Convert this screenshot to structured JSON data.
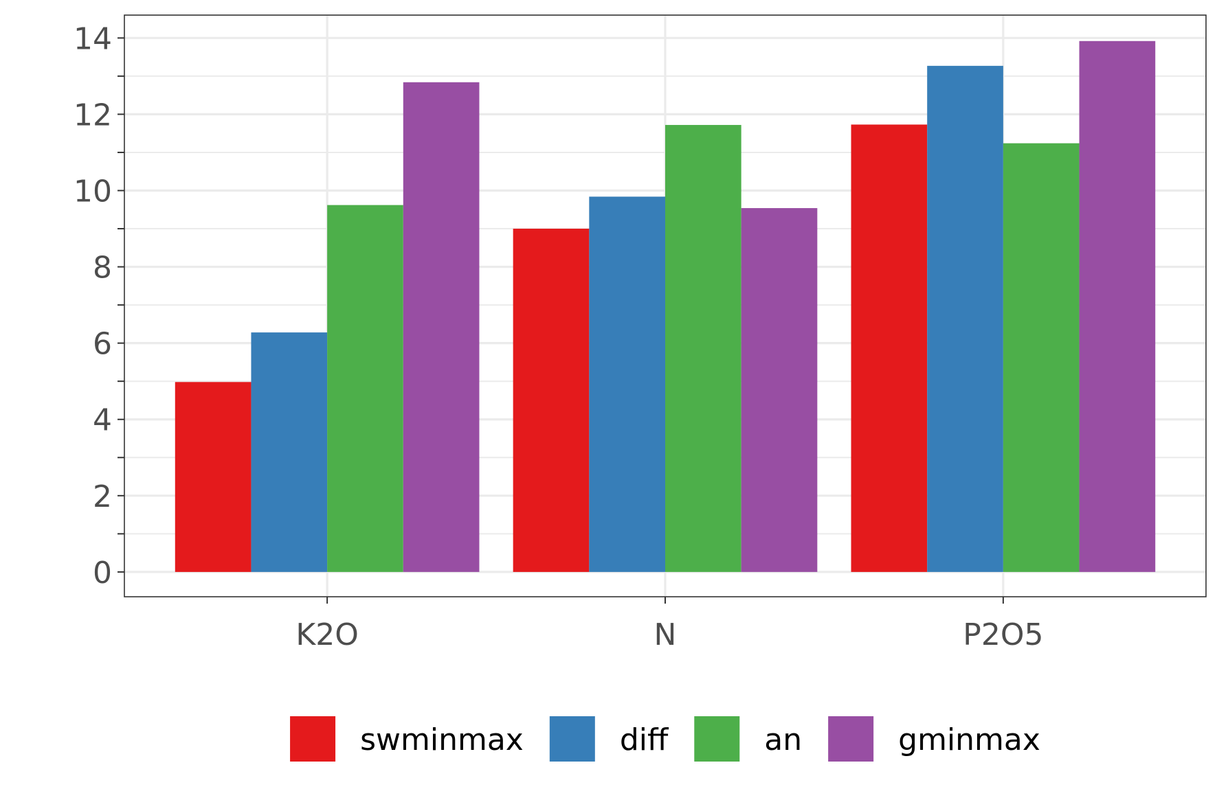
{
  "chart_data": {
    "type": "bar",
    "categories": [
      "K2O",
      "N",
      "P2O5"
    ],
    "series": [
      {
        "name": "swminmax",
        "color": "#e41a1c",
        "values": [
          4.98,
          9.0,
          11.73
        ]
      },
      {
        "name": "diff",
        "color": "#377eb8",
        "values": [
          6.28,
          9.84,
          13.27
        ]
      },
      {
        "name": "an",
        "color": "#4daf4a",
        "values": [
          9.62,
          11.72,
          11.24
        ]
      },
      {
        "name": "gminmax",
        "color": "#984ea3",
        "values": [
          12.84,
          9.54,
          13.92
        ]
      }
    ],
    "y_ticks": [
      "0",
      "2",
      "4",
      "6",
      "8",
      "10",
      "12",
      "14"
    ],
    "ylim": [
      -0.65,
      14.6
    ],
    "title": "",
    "xlabel": "",
    "ylabel": "",
    "grid": true,
    "legend_position": "bottom"
  }
}
